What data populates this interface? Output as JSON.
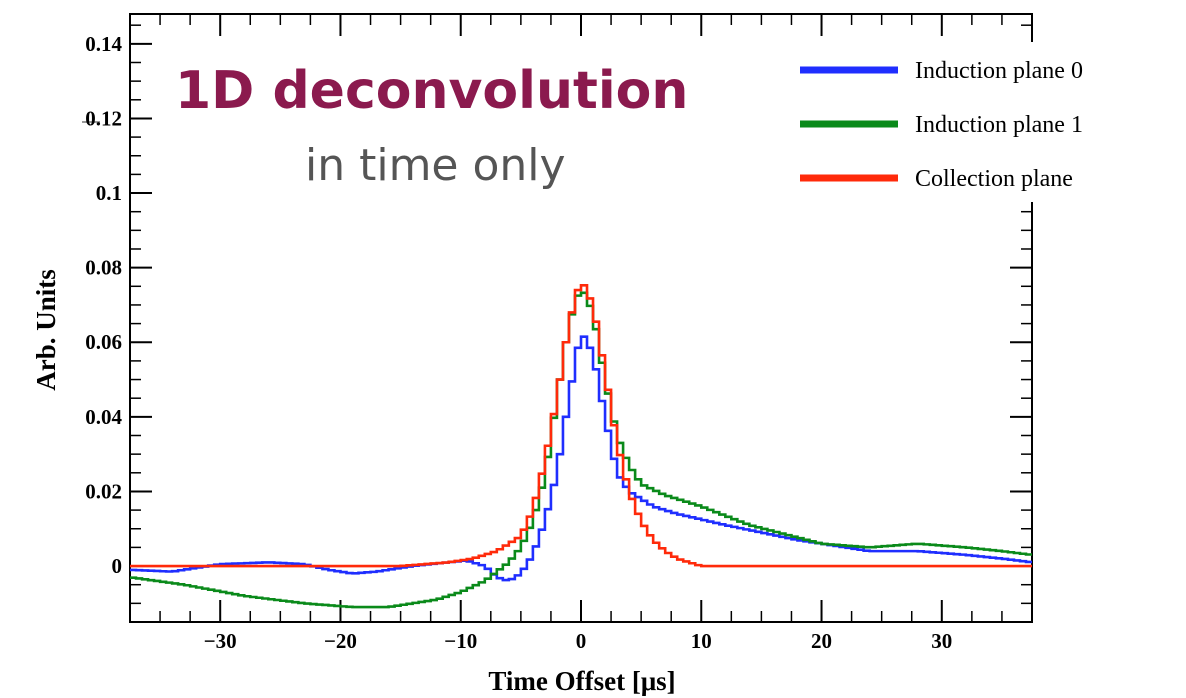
{
  "overlay": {
    "title": "1D deconvolution",
    "subtitle": "in time only",
    "title_color": "#8b1a4e",
    "subtitle_color": "#555555"
  },
  "chart_data": {
    "type": "line",
    "xlabel": "Time Offset [μs]",
    "ylabel": "Arb. Units",
    "xlim": [
      -37.5,
      37.5
    ],
    "ylim": [
      -0.015,
      0.148
    ],
    "x_ticks": [
      -30,
      -20,
      -10,
      0,
      10,
      20,
      30
    ],
    "x_tick_labels": [
      "−30",
      "−20",
      "−10",
      "0",
      "10",
      "20",
      "30"
    ],
    "y_ticks": [
      0,
      0.02,
      0.04,
      0.06,
      0.08,
      0.1,
      0.12,
      0.14
    ],
    "y_tick_labels": [
      "0",
      "0.02",
      "0.04",
      "0.06",
      "0.08",
      "0.1",
      "0.12",
      "0.14"
    ],
    "grid": false,
    "legend_position": "top-right",
    "step": 0.5,
    "series": [
      {
        "name": "Induction plane 0",
        "color": "#1f2eff",
        "points": [
          [
            -37.5,
            -0.001
          ],
          [
            -34,
            -0.0015
          ],
          [
            -30,
            0.0005
          ],
          [
            -26,
            0.001
          ],
          [
            -23,
            0.0005
          ],
          [
            -21,
            -0.001
          ],
          [
            -19,
            -0.002
          ],
          [
            -17,
            -0.0015
          ],
          [
            -14,
            0
          ],
          [
            -11,
            0.001
          ],
          [
            -9.5,
            0.0015
          ],
          [
            -8,
            0
          ],
          [
            -7,
            -0.003
          ],
          [
            -6,
            -0.004
          ],
          [
            -5,
            -0.002
          ],
          [
            -4,
            0.003
          ],
          [
            -3,
            0.012
          ],
          [
            -2,
            0.025
          ],
          [
            -1,
            0.045
          ],
          [
            0,
            0.063
          ],
          [
            1,
            0.057
          ],
          [
            2,
            0.04
          ],
          [
            3,
            0.025
          ],
          [
            4,
            0.02
          ],
          [
            5,
            0.018
          ],
          [
            6,
            0.016
          ],
          [
            8,
            0.014
          ],
          [
            12,
            0.011
          ],
          [
            18,
            0.007
          ],
          [
            24,
            0.004
          ],
          [
            28,
            0.004
          ],
          [
            32,
            0.003
          ],
          [
            35,
            0.002
          ],
          [
            37.5,
            0.001
          ]
        ]
      },
      {
        "name": "Induction plane 1",
        "color": "#0a8a1a",
        "points": [
          [
            -37.5,
            -0.003
          ],
          [
            -33,
            -0.005
          ],
          [
            -28,
            -0.008
          ],
          [
            -23,
            -0.01
          ],
          [
            -19,
            -0.011
          ],
          [
            -16,
            -0.011
          ],
          [
            -12,
            -0.009
          ],
          [
            -10,
            -0.007
          ],
          [
            -8,
            -0.004
          ],
          [
            -6,
            0.001
          ],
          [
            -5,
            0.005
          ],
          [
            -4,
            0.012
          ],
          [
            -3,
            0.024
          ],
          [
            -2,
            0.045
          ],
          [
            -1,
            0.065
          ],
          [
            0,
            0.075
          ],
          [
            1,
            0.068
          ],
          [
            2,
            0.05
          ],
          [
            3,
            0.035
          ],
          [
            4,
            0.027
          ],
          [
            5,
            0.022
          ],
          [
            7,
            0.019
          ],
          [
            10,
            0.016
          ],
          [
            14,
            0.011
          ],
          [
            20,
            0.006
          ],
          [
            24,
            0.005
          ],
          [
            28,
            0.006
          ],
          [
            32,
            0.005
          ],
          [
            35,
            0.004
          ],
          [
            37.5,
            0.003
          ]
        ]
      },
      {
        "name": "Collection plane",
        "color": "#ff2a0a",
        "points": [
          [
            -37.5,
            0
          ],
          [
            -20,
            0
          ],
          [
            -15,
            0
          ],
          [
            -11,
            0.001
          ],
          [
            -9,
            0.002
          ],
          [
            -7,
            0.004
          ],
          [
            -5,
            0.008
          ],
          [
            -4,
            0.015
          ],
          [
            -3,
            0.028
          ],
          [
            -2,
            0.045
          ],
          [
            -1,
            0.065
          ],
          [
            0,
            0.077
          ],
          [
            1,
            0.07
          ],
          [
            2,
            0.052
          ],
          [
            3,
            0.033
          ],
          [
            4,
            0.02
          ],
          [
            5,
            0.012
          ],
          [
            6,
            0.007
          ],
          [
            7,
            0.004
          ],
          [
            8,
            0.002
          ],
          [
            9,
            0.001
          ],
          [
            10,
            0
          ],
          [
            37.5,
            0
          ]
        ]
      }
    ]
  }
}
